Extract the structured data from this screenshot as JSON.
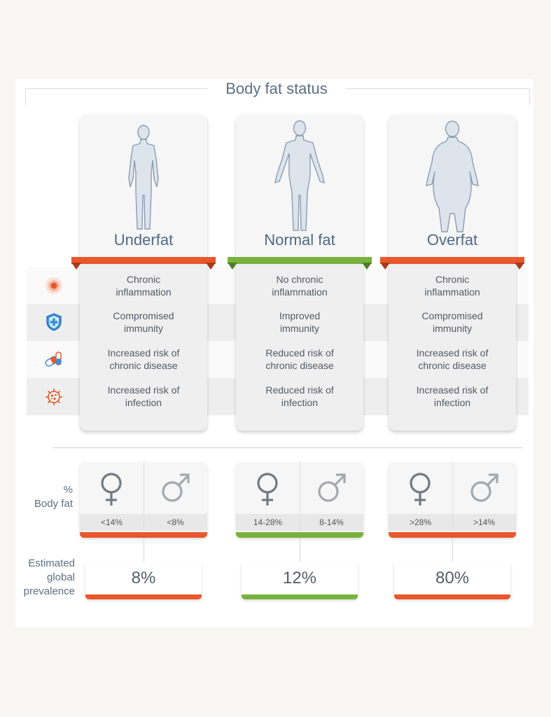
{
  "title": "Body fat status",
  "colors": {
    "underfat": "#e9572c",
    "normal": "#78b23d",
    "overfat": "#e9572c",
    "icon_red": "#e9572c",
    "icon_blue": "#3a8fd9"
  },
  "columns": [
    {
      "name": "Underfat",
      "effects": [
        "Chronic\ninflammation",
        "Compromised\nimmunity",
        "Increased risk of\nchronic disease",
        "Increased risk of\ninfection"
      ],
      "female": "<14%",
      "male": "<8%",
      "prevalence": "8%"
    },
    {
      "name": "Normal fat",
      "effects": [
        "No chronic\ninflammation",
        "Improved\nimmunity",
        "Reduced risk of\nchronic disease",
        "Reduced risk of\ninfection"
      ],
      "female": "14-28%",
      "male": "8-14%",
      "prevalence": "12%"
    },
    {
      "name": "Overfat",
      "effects": [
        "Chronic\ninflammation",
        "Compromised\nimmunity",
        "Increased risk of\nchronic disease",
        "Increased risk of\ninfection"
      ],
      "female": ">28%",
      "male": ">14%",
      "prevalence": "80%"
    }
  ],
  "row_icons": [
    "inflammation-icon",
    "immunity-shield-icon",
    "pills-icon",
    "virus-icon"
  ],
  "labels": {
    "body_fat": "%\nBody fat",
    "prevalence": "Estimated\nglobal\nprevalence"
  }
}
